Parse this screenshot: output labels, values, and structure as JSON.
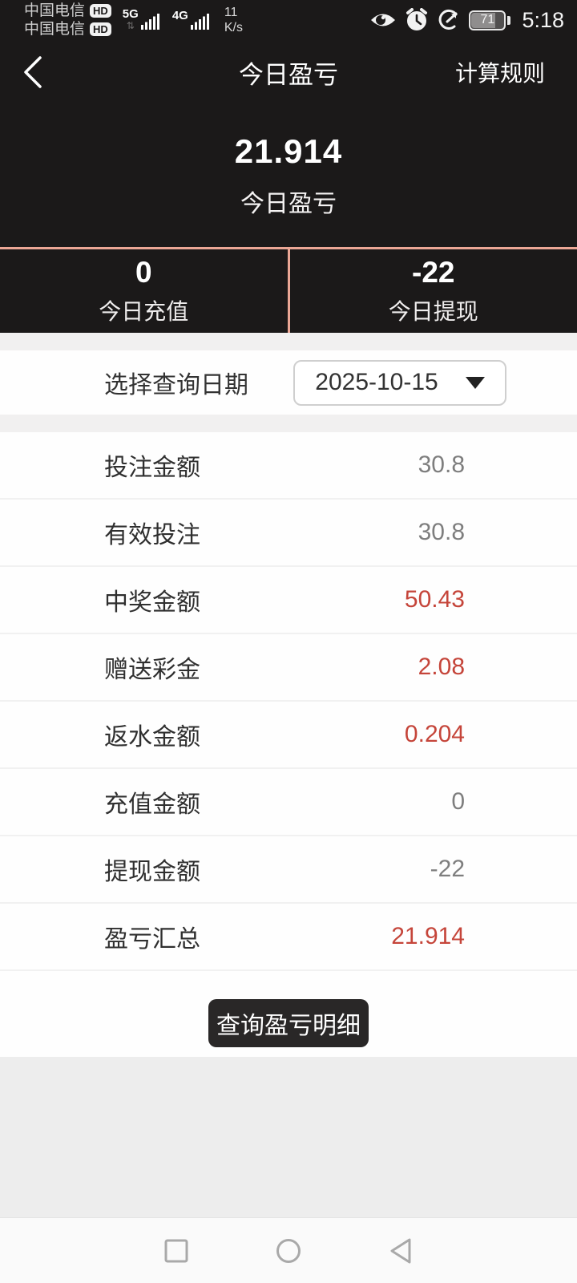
{
  "status_bar": {
    "carrier1": "中国电信",
    "carrier2": "中国电信",
    "hd": "HD",
    "net1": "5G",
    "net2": "4G",
    "speed": "11",
    "speed_unit": "K/s",
    "battery_percent": "71",
    "time": "5:18"
  },
  "nav": {
    "title": "今日盈亏",
    "rules": "计算规则"
  },
  "hero": {
    "value": "21.914",
    "label": "今日盈亏"
  },
  "today": {
    "recharge_value": "0",
    "recharge_label": "今日充值",
    "withdraw_value": "-22",
    "withdraw_label": "今日提现"
  },
  "date_picker": {
    "label": "选择查询日期",
    "value": "2025-10-15"
  },
  "rows": [
    {
      "label": "投注金额",
      "value": "30.8",
      "color": "gray"
    },
    {
      "label": "有效投注",
      "value": "30.8",
      "color": "gray"
    },
    {
      "label": "中奖金额",
      "value": "50.43",
      "color": "red"
    },
    {
      "label": "赠送彩金",
      "value": "2.08",
      "color": "red"
    },
    {
      "label": "返水金额",
      "value": "0.204",
      "color": "red"
    },
    {
      "label": "充值金额",
      "value": "0",
      "color": "gray"
    },
    {
      "label": "提现金额",
      "value": "-22",
      "color": "gray"
    },
    {
      "label": "盈亏汇总",
      "value": "21.914",
      "color": "red"
    }
  ],
  "button": {
    "label": "查询盈亏明细"
  },
  "colors": {
    "dark_bg": "#1b1919",
    "salmon_accent": "#eba695",
    "red_value": "#c5453a",
    "gray_value": "#7e7e7e"
  }
}
